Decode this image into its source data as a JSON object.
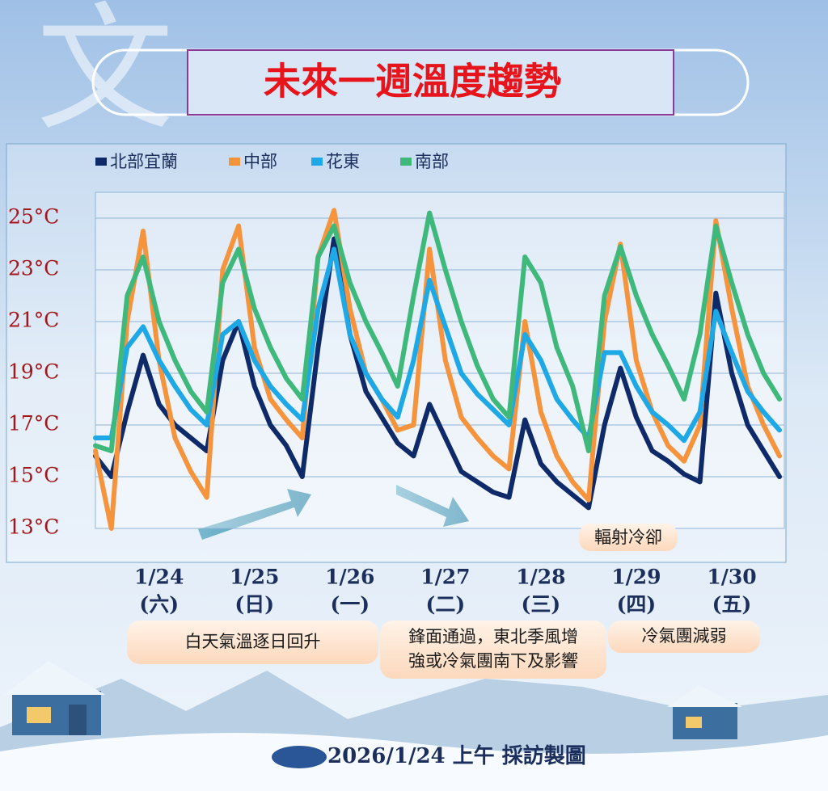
{
  "watermark": "文",
  "chart_data": {
    "type": "line",
    "title": "未來一週溫度趨勢",
    "categories": [
      null,
      null,
      null,
      null,
      "1/24",
      null,
      null,
      null,
      null,
      null,
      "1/25",
      null,
      null,
      null,
      null,
      null,
      "1/26",
      null,
      null,
      null,
      null,
      null,
      "1/27",
      null,
      null,
      null,
      null,
      null,
      "1/28",
      null,
      null,
      null,
      null,
      null,
      "1/29",
      null,
      null,
      null,
      null,
      null,
      "1/30",
      null,
      null,
      null
    ],
    "weekday_labels": [
      null,
      null,
      null,
      null,
      "(六)",
      null,
      null,
      null,
      null,
      null,
      "(日)",
      null,
      null,
      null,
      null,
      null,
      "(一)",
      null,
      null,
      null,
      null,
      null,
      "(二)",
      null,
      null,
      null,
      null,
      null,
      "(三)",
      null,
      null,
      null,
      null,
      null,
      "(四)",
      null,
      null,
      null,
      null,
      null,
      "(五)",
      null,
      null,
      null
    ],
    "series": [
      {
        "name": "北部宜蘭",
        "color": "#0f2a68",
        "values": [
          15.8,
          15.0,
          17.5,
          19.7,
          17.8,
          17.0,
          16.5,
          16.0,
          19.5,
          21.0,
          18.5,
          17.0,
          16.2,
          15.0,
          20.0,
          24.2,
          20.5,
          18.3,
          17.3,
          16.3,
          15.8,
          17.8,
          16.5,
          15.2,
          14.8,
          14.4,
          14.2,
          17.2,
          15.5,
          14.8,
          14.3,
          13.8,
          17.0,
          19.2,
          17.3,
          16.0,
          15.6,
          15.1,
          14.8,
          22.1,
          19.0,
          17.0,
          16.0,
          15.0
        ]
      },
      {
        "name": "中部",
        "color": "#f6943e",
        "values": [
          16.0,
          13.0,
          21.0,
          24.5,
          19.5,
          16.5,
          15.2,
          14.2,
          23.0,
          24.7,
          20.0,
          18.0,
          17.2,
          16.5,
          23.5,
          25.3,
          21.5,
          19.0,
          18.0,
          16.8,
          17.0,
          23.8,
          19.5,
          17.3,
          16.5,
          15.8,
          15.3,
          21.0,
          17.5,
          15.8,
          14.8,
          14.1,
          21.0,
          24.0,
          19.5,
          17.5,
          16.2,
          15.6,
          17.0,
          24.9,
          21.5,
          18.5,
          17.0,
          15.8
        ]
      },
      {
        "name": "花東",
        "color": "#1fa8e6",
        "values": [
          16.5,
          16.5,
          20.0,
          20.8,
          19.5,
          18.5,
          17.6,
          17.0,
          20.5,
          21.0,
          19.5,
          18.5,
          17.8,
          17.2,
          21.5,
          23.8,
          20.5,
          19.0,
          18.0,
          17.3,
          19.5,
          22.6,
          20.8,
          19.0,
          18.2,
          17.6,
          17.0,
          20.5,
          19.5,
          18.0,
          17.2,
          16.5,
          19.8,
          19.8,
          18.5,
          17.5,
          17.0,
          16.4,
          17.5,
          21.4,
          19.8,
          18.3,
          17.5,
          16.8
        ]
      },
      {
        "name": "南部",
        "color": "#3fb87b",
        "values": [
          16.2,
          16.0,
          22.0,
          23.5,
          21.0,
          19.5,
          18.3,
          17.5,
          22.5,
          23.8,
          21.5,
          20.0,
          18.8,
          18.0,
          23.5,
          24.7,
          22.5,
          21.0,
          19.8,
          18.5,
          22.0,
          25.2,
          23.0,
          21.0,
          19.3,
          18.0,
          17.3,
          23.5,
          22.5,
          20.0,
          18.5,
          16.0,
          22.0,
          23.9,
          22.0,
          20.5,
          19.3,
          18.0,
          20.5,
          24.7,
          22.5,
          20.5,
          19.0,
          18.0
        ]
      }
    ],
    "ylim": [
      13,
      26
    ],
    "yticks": [
      {
        "value": 13,
        "label": "13°C"
      },
      {
        "value": 15,
        "label": "15°C"
      },
      {
        "value": 17,
        "label": "17°C"
      },
      {
        "value": 19,
        "label": "19°C"
      },
      {
        "value": 21,
        "label": "21°C"
      },
      {
        "value": 23,
        "label": "23°C"
      },
      {
        "value": 25,
        "label": "25°C"
      }
    ],
    "grid": true,
    "annotations": [
      "輻射冷卻"
    ],
    "notes": [
      [
        "白天氣溫逐日回升"
      ],
      [
        "鋒面通過，東北季風增",
        "強或冷氣團南下及影響"
      ],
      [
        "冷氣團減弱"
      ]
    ]
  },
  "footer": "2026/1/24 上午 採訪製圖"
}
